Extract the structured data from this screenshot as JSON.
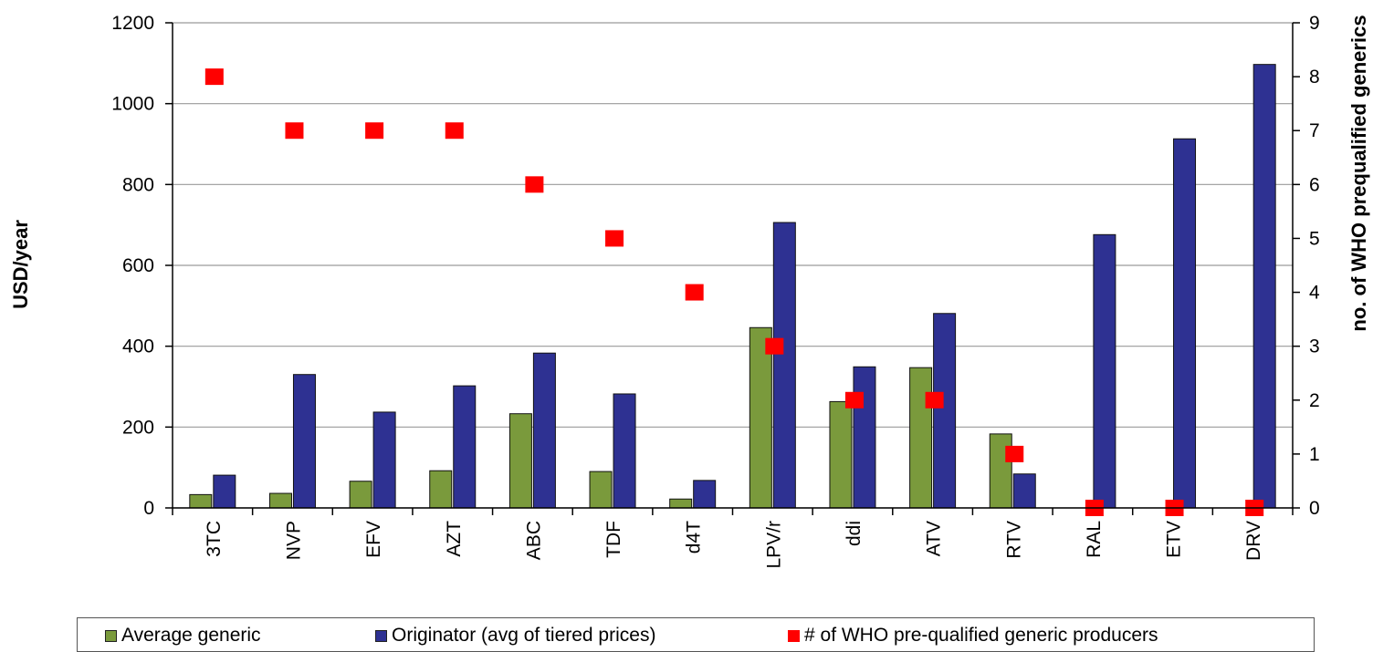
{
  "chart_data": {
    "type": "bar",
    "categories": [
      "3TC",
      "NVP",
      "EFV",
      "AZT",
      "ABC",
      "TDF",
      "d4T",
      "LPV/r",
      "ddi",
      "ATV",
      "RTV",
      "RAL",
      "ETV",
      "DRV"
    ],
    "series": [
      {
        "name": "Average generic",
        "axis": "left",
        "color": "#7a9a3c",
        "values": [
          33,
          36,
          66,
          92,
          233,
          90,
          22,
          446,
          263,
          347,
          183,
          0,
          0,
          0
        ]
      },
      {
        "name": "Originator (avg of tiered prices)",
        "axis": "left",
        "color": "#2e3192",
        "values": [
          81,
          330,
          237,
          302,
          383,
          282,
          68,
          706,
          349,
          481,
          84,
          676,
          913,
          1097
        ]
      },
      {
        "name": "# of WHO pre-qualified generic producers",
        "axis": "right",
        "type": "scatter",
        "color": "#ff0000",
        "values": [
          8,
          7,
          7,
          7,
          6,
          5,
          4,
          3,
          2,
          2,
          1,
          0,
          0,
          0
        ]
      }
    ],
    "ylabel": "USD/year",
    "ylabel_right": "no. of WHO prequalified generics",
    "ylim": [
      0,
      1200
    ],
    "yticks": [
      0,
      200,
      400,
      600,
      800,
      1000,
      1200
    ],
    "ylim_right": [
      0,
      9
    ],
    "yticks_right": [
      0,
      1,
      2,
      3,
      4,
      5,
      6,
      7,
      8,
      9
    ],
    "grid": true,
    "legend_position": "bottom"
  }
}
